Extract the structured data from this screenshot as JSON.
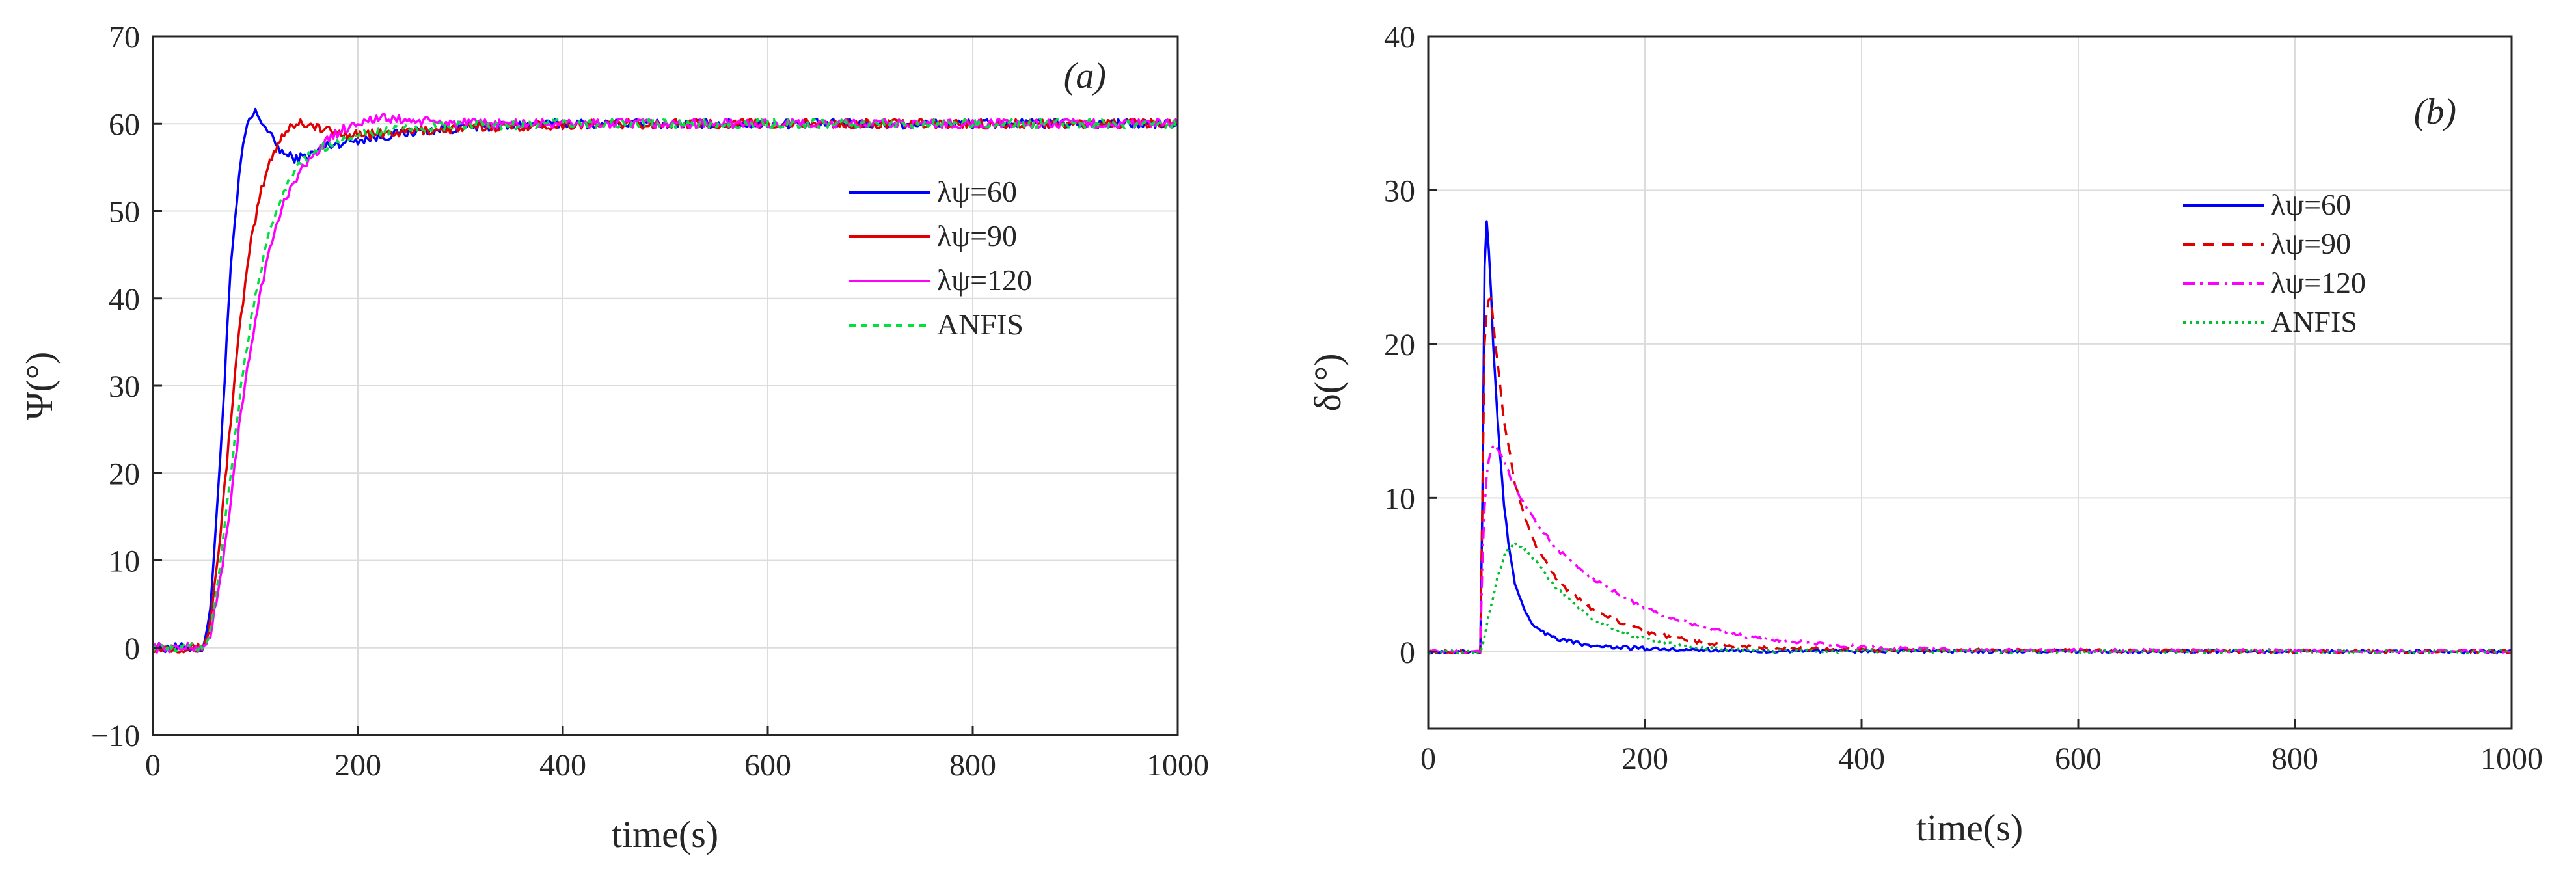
{
  "chart_data": [
    {
      "type": "line",
      "panel_label": "(a)",
      "xlabel": "time(s)",
      "ylabel": "Ψ(°)",
      "xlim": [
        0,
        1000
      ],
      "ylim": [
        -10,
        70
      ],
      "xticks": [
        0,
        200,
        400,
        600,
        800,
        1000
      ],
      "yticks": [
        -10,
        0,
        10,
        20,
        30,
        40,
        50,
        60,
        70
      ],
      "xtick_labels": [
        "0",
        "200",
        "400",
        "600",
        "800",
        "1000"
      ],
      "ytick_labels": [
        "−10",
        "0",
        "10",
        "20",
        "30",
        "40",
        "50",
        "60",
        "70"
      ],
      "grid": true,
      "legend_position": "center-right",
      "series": [
        {
          "name": "λψ=60",
          "color": "#0000ff",
          "dash": "solid",
          "x": [
            0,
            48,
            55,
            65,
            75,
            85,
            92,
            100,
            108,
            118,
            128,
            140,
            155,
            170,
            190,
            220,
            260,
            320,
            400,
            500,
            700,
            1000
          ],
          "y": [
            0,
            0,
            3,
            20,
            42,
            55,
            60,
            61.3,
            60,
            58,
            56.5,
            56,
            56.5,
            57.5,
            58,
            58.5,
            59.2,
            59.7,
            60,
            60,
            60,
            60
          ]
        },
        {
          "name": "λψ=90",
          "color": "#e00000",
          "dash": "solid",
          "x": [
            0,
            48,
            55,
            65,
            75,
            85,
            95,
            105,
            115,
            125,
            135,
            145,
            155,
            170,
            190,
            220,
            260,
            320,
            400,
            500,
            700,
            1000
          ],
          "y": [
            0,
            0,
            2,
            12,
            25,
            37,
            46,
            52,
            56,
            58.5,
            59.8,
            60.2,
            59.8,
            59.2,
            58.8,
            58.8,
            59.2,
            59.6,
            59.9,
            60,
            60,
            60
          ]
        },
        {
          "name": "λψ=120",
          "color": "#ff00ff",
          "dash": "solid",
          "x": [
            0,
            48,
            55,
            65,
            75,
            85,
            95,
            105,
            115,
            125,
            135,
            150,
            165,
            180,
            200,
            220,
            240,
            270,
            320,
            400,
            500,
            700,
            1000
          ],
          "y": [
            0,
            0,
            1,
            7,
            16,
            26,
            34,
            41,
            46,
            50,
            53,
            55.5,
            57.5,
            59,
            60.2,
            60.6,
            60.5,
            60.2,
            60,
            60,
            60,
            60,
            60
          ]
        },
        {
          "name": "ANFIS",
          "color": "#00e040",
          "dash": "10,8",
          "x": [
            0,
            48,
            55,
            65,
            75,
            85,
            95,
            105,
            115,
            125,
            140,
            160,
            180,
            200,
            230,
            270,
            320,
            400,
            500,
            700,
            1000
          ],
          "y": [
            0,
            0,
            1.5,
            9,
            19,
            29,
            37,
            43,
            48,
            51.5,
            55,
            57,
            58,
            58.7,
            59.2,
            59.6,
            59.8,
            60,
            60,
            60,
            60
          ]
        }
      ]
    },
    {
      "type": "line",
      "panel_label": "(b)",
      "xlabel": "time(s)",
      "ylabel": "δ(°)",
      "xlim": [
        0,
        1000
      ],
      "ylim": [
        -5,
        40
      ],
      "xticks": [
        0,
        200,
        400,
        600,
        800,
        1000
      ],
      "yticks": [
        0,
        10,
        20,
        30,
        40
      ],
      "xtick_labels": [
        "0",
        "200",
        "400",
        "600",
        "800",
        "1000"
      ],
      "ytick_labels": [
        "0",
        "10",
        "20",
        "30",
        "40"
      ],
      "grid": true,
      "legend_position": "top-right",
      "series": [
        {
          "name": "λψ=60",
          "color": "#0000ff",
          "dash": "solid",
          "x": [
            0,
            49,
            50,
            52,
            54,
            57,
            60,
            65,
            70,
            75,
            80,
            90,
            100,
            120,
            150,
            200,
            300,
            1000
          ],
          "y": [
            0,
            0,
            10,
            25,
            28,
            25,
            20,
            14,
            9.5,
            6.5,
            4.5,
            2.5,
            1.5,
            0.8,
            0.4,
            0.2,
            0.05,
            0
          ]
        },
        {
          "name": "λψ=90",
          "color": "#e00000",
          "dash": "18,12",
          "x": [
            0,
            49,
            50,
            52,
            55,
            58,
            62,
            70,
            80,
            90,
            100,
            120,
            150,
            180,
            200,
            250,
            300,
            400,
            1000
          ],
          "y": [
            0,
            0,
            10,
            20,
            23,
            23,
            20,
            15,
            11,
            8.5,
            6.8,
            4.5,
            2.8,
            1.8,
            1.3,
            0.6,
            0.3,
            0.1,
            0
          ]
        },
        {
          "name": "λψ=120",
          "color": "#ff00ff",
          "dash": "18,8,4,8",
          "x": [
            0,
            49,
            50,
            53,
            57,
            62,
            67,
            75,
            85,
            100,
            120,
            150,
            200,
            250,
            300,
            400,
            500,
            1000
          ],
          "y": [
            0,
            0,
            6,
            11,
            13,
            13.5,
            12.8,
            11.5,
            10,
            8.3,
            6.6,
            4.8,
            2.8,
            1.6,
            0.9,
            0.3,
            0.1,
            0
          ]
        },
        {
          "name": "ANFIS",
          "color": "#00c030",
          "dash": "4,6",
          "x": [
            0,
            49,
            52,
            58,
            65,
            72,
            80,
            90,
            100,
            120,
            150,
            180,
            220,
            260,
            300,
            1000
          ],
          "y": [
            0,
            0,
            1,
            3,
            5.2,
            6.5,
            7,
            6.6,
            5.8,
            4,
            2.2,
            1.2,
            0.5,
            0.2,
            0.05,
            0
          ]
        }
      ]
    }
  ]
}
